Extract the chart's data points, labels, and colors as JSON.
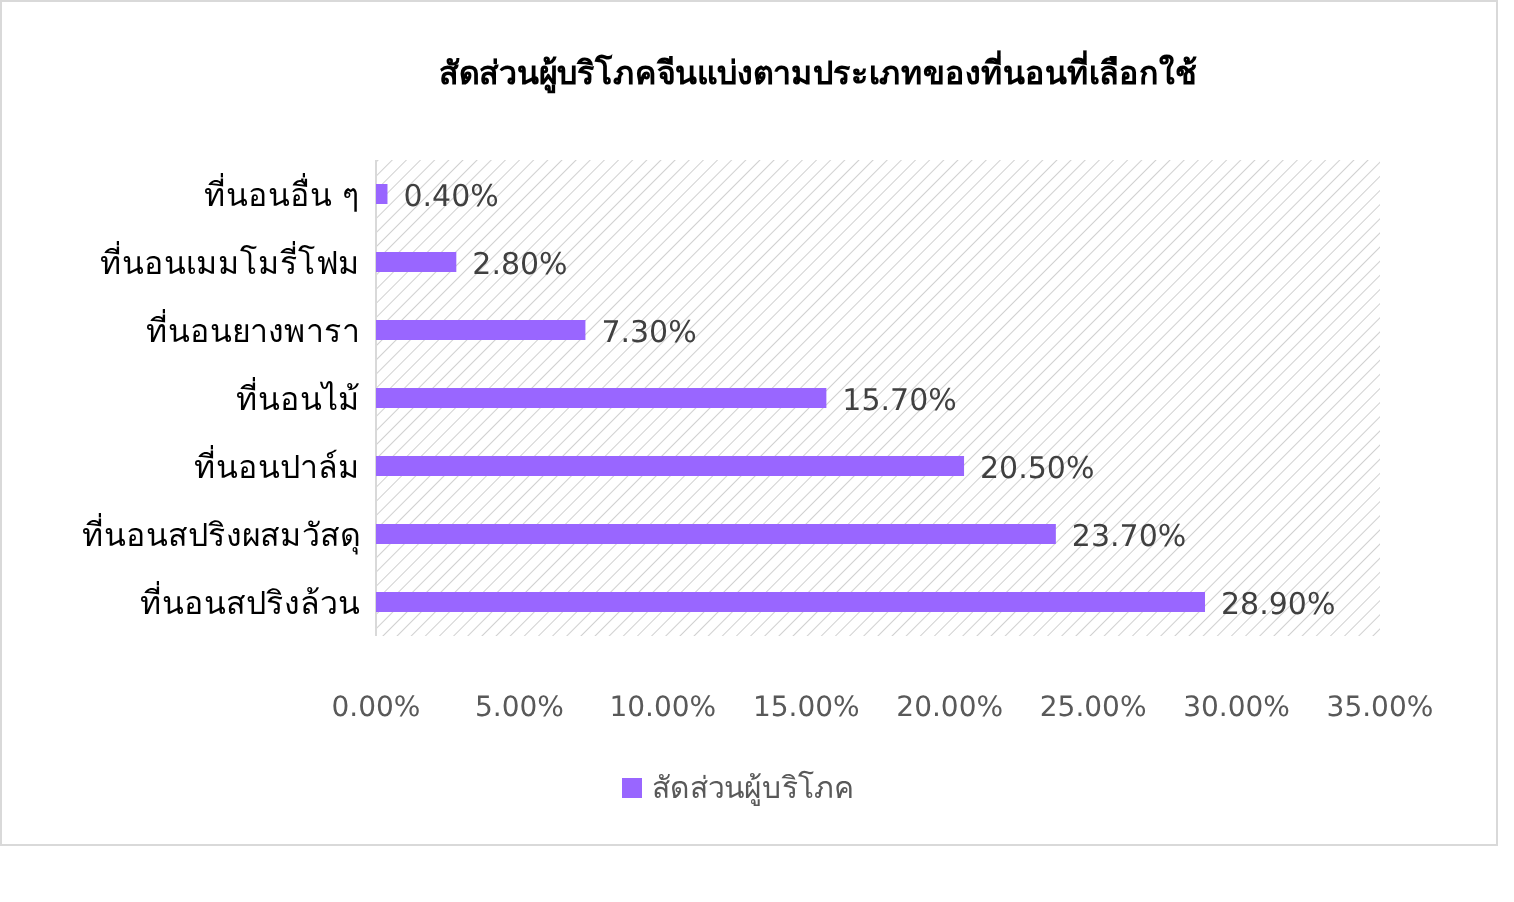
{
  "chart_data": {
    "type": "bar",
    "orientation": "horizontal",
    "title": "สัดส่วนผู้บริโภคจีนแบ่งตามประเภทของที่นอนที่เลือกใช้",
    "categories": [
      "ที่นอนอื่น ๆ",
      "ที่นอนเมมโมรี่โฟม",
      "ที่นอนยางพารา",
      "ที่นอนไม้",
      "ที่นอนปาล์ม",
      "ที่นอนสปริงผสมวัสดุ",
      "ที่นอนสปริงล้วน"
    ],
    "series": [
      {
        "name": "สัดส่วนผู้บริโภค",
        "color": "#9966ff",
        "values": [
          0.4,
          2.8,
          7.3,
          15.7,
          20.5,
          23.7,
          28.9
        ],
        "value_labels": [
          "0.40%",
          "2.80%",
          "7.30%",
          "15.70%",
          "20.50%",
          "23.70%",
          "28.90%"
        ]
      }
    ],
    "xlim": [
      0,
      35
    ],
    "xticks": [
      {
        "value": 0,
        "label": "0.00%"
      },
      {
        "value": 5,
        "label": "5.00%"
      },
      {
        "value": 10,
        "label": "10.00%"
      },
      {
        "value": 15,
        "label": "15.00%"
      },
      {
        "value": 20,
        "label": "20.00%"
      },
      {
        "value": 25,
        "label": "25.00%"
      },
      {
        "value": 30,
        "label": "30.00%"
      },
      {
        "value": 35,
        "label": "35.00%"
      }
    ],
    "legend": "bottom",
    "grid": false
  }
}
